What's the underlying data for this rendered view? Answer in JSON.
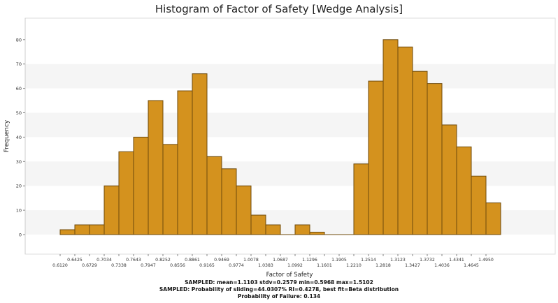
{
  "colors": {
    "bar_fill": "#d4921e",
    "bar_stroke": "#6e4a0c",
    "band": "#f5f5f5",
    "axis": "#888888"
  },
  "chart_data": {
    "type": "bar",
    "title": "Histogram of Factor of Safety [Wedge Analysis]",
    "xlabel": "Factor of Safety",
    "ylabel": "Frequency",
    "ylim": [
      -9,
      88
    ],
    "yticks": [
      0,
      10,
      20,
      30,
      40,
      50,
      60,
      70,
      80
    ],
    "xrange": [
      0.5968,
      1.5102
    ],
    "bin_width": 0.03039,
    "bin_edges_start": 0.612,
    "values": [
      2,
      4,
      4,
      20,
      34,
      40,
      55,
      37,
      59,
      66,
      32,
      27,
      20,
      8,
      4,
      0,
      4,
      1,
      0,
      0,
      29,
      63,
      80,
      77,
      67,
      62,
      45,
      36,
      24,
      13
    ],
    "xtick_labels_upper": [
      "0.6425",
      "0.7034",
      "0.7643",
      "0.8252",
      "0.8861",
      "0.9469",
      "1.0078",
      "1.0687",
      "1.1296",
      "1.1905",
      "1.2514",
      "1.3123",
      "1.3732",
      "1.4341",
      "1.4950"
    ],
    "xtick_labels_lower": [
      "0.6120",
      "0.6729",
      "0.7338",
      "0.7947",
      "0.8556",
      "0.9165",
      "0.9774",
      "1.0383",
      "1.0992",
      "1.1601",
      "1.2210",
      "1.2818",
      "1.3427",
      "1.4036",
      "1.4645"
    ]
  },
  "summary": {
    "line1": "SAMPLED: mean=1.1103 stdv=0.2579 min=0.5968 max=1.5102",
    "line2": "SAMPLED: Probability of sliding=44.0307% RI=0.4278, best fit=Beta distribution",
    "line3": "Probability of Failure: 0.134"
  }
}
